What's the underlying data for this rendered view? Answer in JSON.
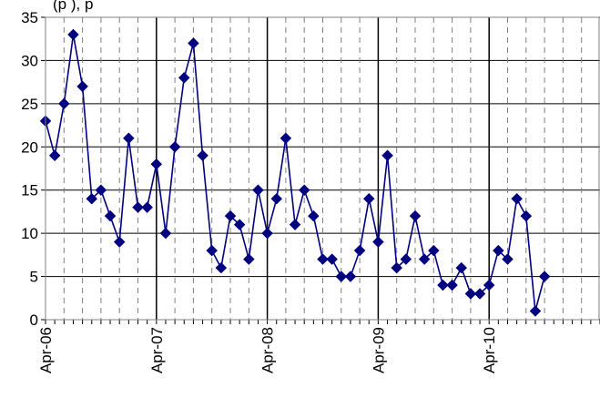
{
  "chart_data": {
    "type": "line",
    "title_fragment": "(p                                    ), p",
    "x_tick_labels": [
      "Apr-06",
      "Apr-07",
      "Apr-08",
      "Apr-09",
      "Apr-10"
    ],
    "y_tick_labels": [
      "0",
      "5",
      "10",
      "15",
      "20",
      "25",
      "30",
      "35"
    ],
    "xlim_months": [
      0,
      60
    ],
    "ylim": [
      0,
      35
    ],
    "grid": {
      "y_major": true,
      "x_major_solid_yearly": true,
      "x_minor_dashed": true
    },
    "series": [
      {
        "values": [
          23,
          19,
          25,
          33,
          27,
          14,
          15,
          12,
          9,
          21,
          13,
          13,
          18,
          10,
          20,
          28,
          32,
          19,
          8,
          6,
          12,
          11,
          7,
          15,
          10,
          14,
          21,
          11,
          15,
          12,
          7,
          7,
          5,
          5,
          8,
          14,
          9,
          19,
          6,
          7,
          12,
          7,
          8,
          4,
          4,
          6,
          3,
          3,
          4,
          8,
          7,
          14,
          12,
          1,
          5
        ],
        "color": "#000080"
      }
    ]
  }
}
